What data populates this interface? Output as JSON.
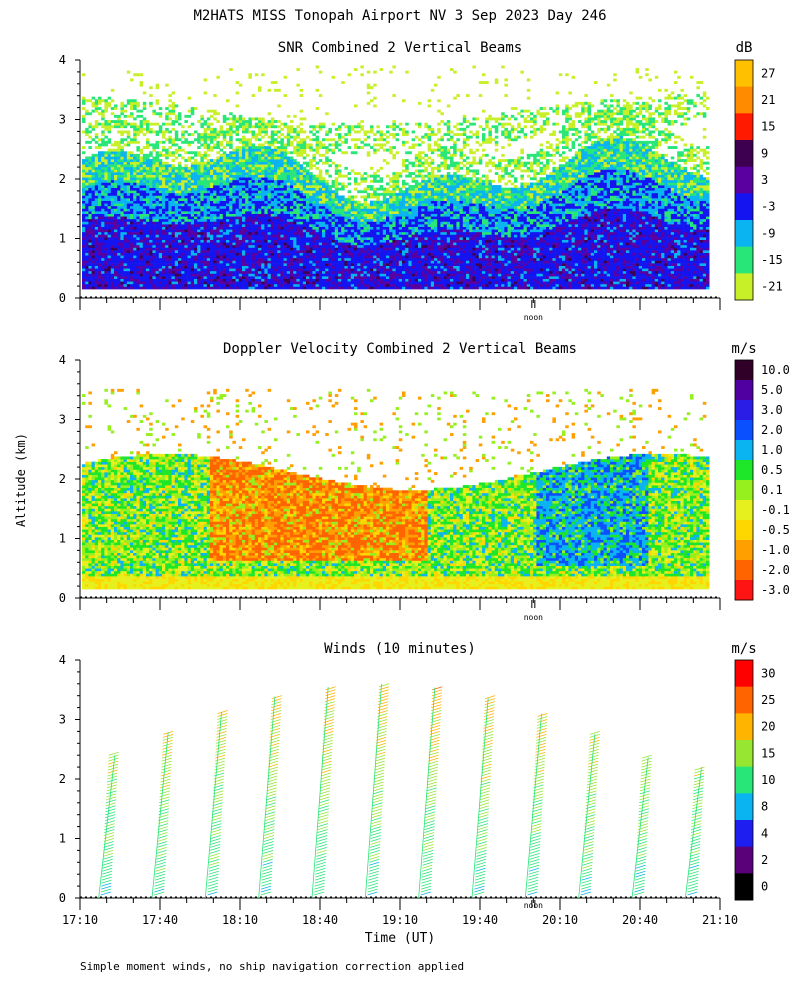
{
  "figure": {
    "title": "M2HATS MISS Tonopah Airport NV   3 Sep 2023 Day 246",
    "ylabel": "Altitude (km)",
    "xlabel": "Time (UT)",
    "footnote": "Simple moment winds, no ship navigation correction applied",
    "noon_label": "noon",
    "x_tick_labels": [
      "17:10",
      "17:40",
      "18:10",
      "18:40",
      "19:10",
      "19:40",
      "20:10",
      "20:40",
      "21:10"
    ]
  },
  "chart_data": [
    {
      "type": "heatmap",
      "title": "SNR Combined 2 Vertical Beams",
      "units": "dB",
      "ylabel": "Altitude (km)",
      "x_range_hours": [
        17.1667,
        21.1667
      ],
      "ylim": [
        0,
        4
      ],
      "y_ticks": [
        0,
        1,
        2,
        3,
        4
      ],
      "noon_hour": 20.0,
      "colorbar": {
        "labels": [
          "27",
          "21",
          "15",
          "9",
          "3",
          "-3",
          "-9",
          "-15",
          "-21"
        ],
        "colors": [
          "#ffc000",
          "#ff8c00",
          "#ff1a00",
          "#3d0050",
          "#5a00a0",
          "#1414f0",
          "#0ab4f0",
          "#28e678",
          "#c8f028"
        ]
      },
      "fields": {
        "top_km": 2.25,
        "sparse_max_km": 3.9,
        "min_km": 0.15
      }
    },
    {
      "type": "heatmap",
      "title": "Doppler Velocity Combined 2 Vertical Beams",
      "units": "m/s",
      "ylabel": "Altitude (km)",
      "x_range_hours": [
        17.1667,
        21.1667
      ],
      "ylim": [
        0,
        4
      ],
      "y_ticks": [
        0,
        1,
        2,
        3,
        4
      ],
      "noon_hour": 20.0,
      "colorbar": {
        "labels": [
          "10.0",
          "5.0",
          "3.0",
          "2.0",
          "1.0",
          "0.5",
          "0.1",
          "-0.1",
          "-0.5",
          "-1.0",
          "-2.0",
          "-3.0"
        ],
        "colors": [
          "#300028",
          "#5000a0",
          "#2a1ee6",
          "#0a50ff",
          "#0ab4f0",
          "#1ee628",
          "#96f01e",
          "#e6f01e",
          "#ffd700",
          "#ffa000",
          "#ff6400",
          "#ff1414"
        ]
      },
      "fields": {
        "top_km": 2.3,
        "min_km": 0.15
      }
    },
    {
      "type": "wind-barbs",
      "title": "Winds (10 minutes)",
      "units": "m/s",
      "ylabel": "Altitude (km)",
      "x_range_hours": [
        17.1667,
        21.1667
      ],
      "ylim": [
        0,
        4
      ],
      "y_ticks": [
        0,
        1,
        2,
        3,
        4
      ],
      "noon_hour": 20.0,
      "profile_interval_minutes": 10,
      "colorbar": {
        "labels": [
          "30",
          "25",
          "20",
          "15",
          "10",
          "8",
          "4",
          "2",
          "0"
        ],
        "colors": [
          "#ff0000",
          "#ff6400",
          "#ffb400",
          "#96e632",
          "#28e678",
          "#0ab4f0",
          "#1e1ef0",
          "#5a0078",
          "#000000"
        ]
      }
    }
  ]
}
